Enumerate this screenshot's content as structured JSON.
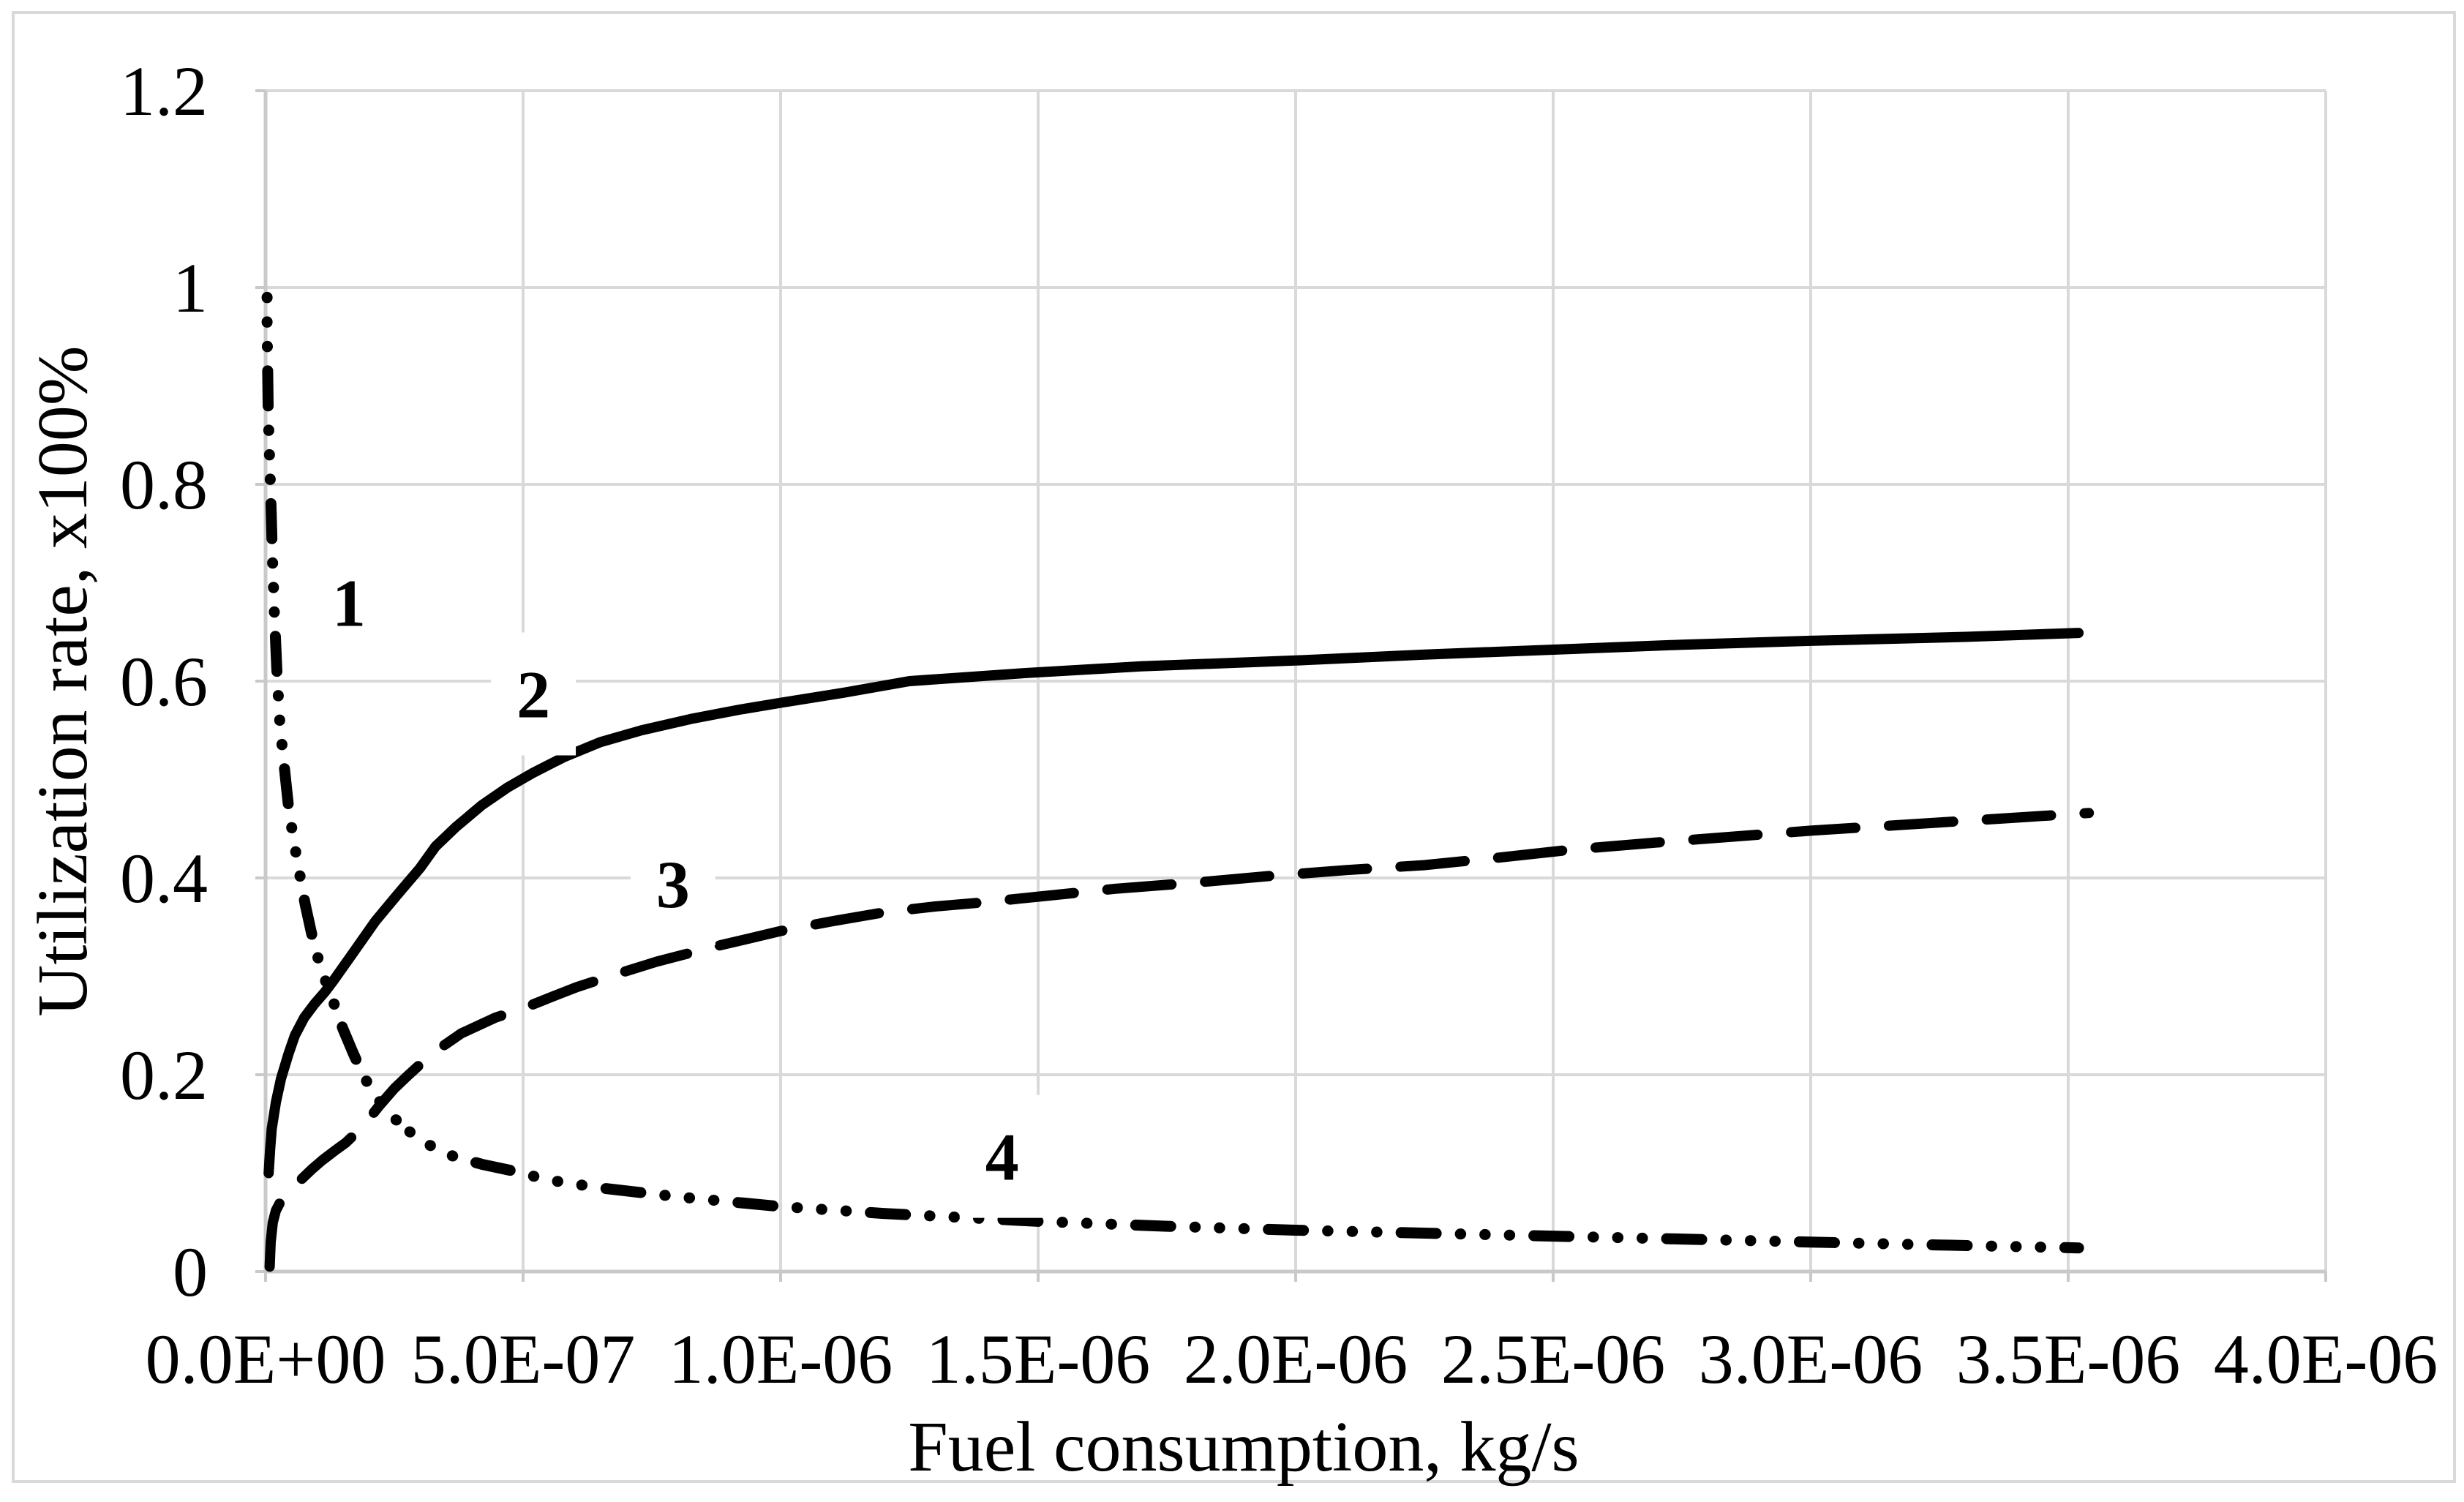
{
  "figure": {
    "background_color": "#FFFFFF",
    "border_color": "#D9D9D9",
    "gridline_color": "#D9D9D9",
    "axis_line_color": "#C9C9C9",
    "curve_color": "#000000"
  },
  "chart_data": {
    "type": "line",
    "title": "",
    "xlabel": "Fuel consumption, kg/s",
    "ylabel": "Utilization rate, x100%",
    "xlim": [
      0,
      4e-06
    ],
    "ylim": [
      0,
      1.2
    ],
    "grid": true,
    "legend_position": "none",
    "x_tick_values": [
      0,
      5e-07,
      1e-06,
      1.5e-06,
      2e-06,
      2.5e-06,
      3e-06,
      3.5e-06,
      4e-06
    ],
    "x_tick_labels": [
      "0.0E+00",
      "5.0E-07",
      "1.0E-06",
      "1.5E-06",
      "2.0E-06",
      "2.5E-06",
      "3.0E-06",
      "3.5E-06",
      "4.0E-06"
    ],
    "y_tick_values": [
      0,
      0.2,
      0.4,
      0.6,
      0.8,
      1.0,
      1.2
    ],
    "y_tick_labels": [
      "0",
      "0.2",
      "0.4",
      "0.6",
      "0.8",
      "1",
      "1.2"
    ],
    "series": [
      {
        "name": "1",
        "style": "dotted",
        "points": [
          [
            3e-09,
            0.99
          ],
          [
            3e-09,
            0.96
          ],
          [
            4e-09,
            0.92
          ],
          [
            5e-09,
            0.88
          ],
          [
            7e-09,
            0.84
          ],
          [
            1e-08,
            0.79
          ],
          [
            1.3e-08,
            0.73
          ],
          [
            1.7e-08,
            0.67
          ],
          [
            2.2e-08,
            0.61
          ],
          [
            2.8e-08,
            0.555
          ],
          [
            3.5e-08,
            0.52
          ],
          [
            4.5e-08,
            0.47
          ],
          [
            5.5e-08,
            0.437
          ],
          [
            6.4e-08,
            0.41
          ],
          [
            7.7e-08,
            0.373
          ],
          [
            9.5e-08,
            0.33
          ],
          [
            1.13e-07,
            0.3
          ],
          [
            1.31e-07,
            0.275
          ],
          [
            1.5e-07,
            0.247
          ],
          [
            1.7e-07,
            0.222
          ],
          [
            1.9e-07,
            0.199
          ],
          [
            2.13e-07,
            0.178
          ],
          [
            2.45e-07,
            0.158
          ],
          [
            2.8e-07,
            0.142
          ]
        ]
      },
      {
        "name": "2",
        "style": "solid",
        "points": [
          [
            6e-09,
            0.1
          ],
          [
            9e-09,
            0.125
          ],
          [
            1.2e-08,
            0.145
          ],
          [
            2e-08,
            0.172
          ],
          [
            3e-08,
            0.196
          ],
          [
            4.5e-08,
            0.222
          ],
          [
            5.7e-08,
            0.24
          ],
          [
            7.5e-08,
            0.258
          ],
          [
            9.5e-08,
            0.272
          ],
          [
            1.15e-07,
            0.284
          ],
          [
            1.31e-07,
            0.295
          ],
          [
            1.66e-07,
            0.321
          ],
          [
            2.13e-07,
            0.356
          ],
          [
            2.56e-07,
            0.383
          ],
          [
            3e-07,
            0.41
          ],
          [
            3.3e-07,
            0.432
          ],
          [
            3.7e-07,
            0.452
          ],
          [
            4.2e-07,
            0.474
          ],
          [
            4.7e-07,
            0.492
          ],
          [
            5.2e-07,
            0.507
          ],
          [
            5.8e-07,
            0.523
          ],
          [
            6.5e-07,
            0.538
          ],
          [
            7.3e-07,
            0.55
          ],
          [
            8.3e-07,
            0.562
          ],
          [
            9.2e-07,
            0.571
          ],
          [
            1e-06,
            0.578
          ],
          [
            1.12e-06,
            0.588
          ],
          [
            1.25e-06,
            0.6
          ],
          [
            1.47e-06,
            0.608
          ],
          [
            1.7e-06,
            0.615
          ],
          [
            2e-06,
            0.621
          ],
          [
            2.25e-06,
            0.627
          ],
          [
            2.5e-06,
            0.632
          ],
          [
            2.75e-06,
            0.637
          ],
          [
            3e-06,
            0.641
          ],
          [
            3.3e-06,
            0.645
          ],
          [
            3.52e-06,
            0.649
          ]
        ]
      },
      {
        "name": "3",
        "style": "dashed",
        "points": [
          [
            8e-09,
            0.005
          ],
          [
            1e-08,
            0.03
          ],
          [
            1.4e-08,
            0.05
          ],
          [
            2e-08,
            0.062
          ],
          [
            3e-08,
            0.072
          ],
          [
            4.5e-08,
            0.08
          ],
          [
            5.3e-08,
            0.084
          ],
          [
            7e-08,
            0.094
          ],
          [
            9e-08,
            0.104
          ],
          [
            1.1e-07,
            0.113
          ],
          [
            1.35e-07,
            0.123
          ],
          [
            1.56e-07,
            0.131
          ],
          [
            1.9e-07,
            0.148
          ],
          [
            2.2e-07,
            0.168
          ],
          [
            2.5e-07,
            0.186
          ],
          [
            2.76e-07,
            0.199
          ],
          [
            3.22e-07,
            0.221
          ],
          [
            3.8e-07,
            0.242
          ],
          [
            4.46e-07,
            0.258
          ],
          [
            5.03e-07,
            0.268
          ],
          [
            5.6e-07,
            0.28
          ],
          [
            6.04e-07,
            0.289
          ],
          [
            6.8e-07,
            0.302
          ],
          [
            7.6e-07,
            0.315
          ],
          [
            8.7e-07,
            0.33
          ],
          [
            1e-06,
            0.346
          ],
          [
            1.1e-06,
            0.356
          ],
          [
            1.2e-06,
            0.365
          ],
          [
            1.3e-06,
            0.371
          ],
          [
            1.39e-06,
            0.375
          ],
          [
            1.5e-06,
            0.381
          ],
          [
            1.65e-06,
            0.389
          ],
          [
            1.8e-06,
            0.395
          ],
          [
            1.95e-06,
            0.402
          ],
          [
            2.1e-06,
            0.408
          ],
          [
            2.25e-06,
            0.413
          ],
          [
            2.4e-06,
            0.421
          ],
          [
            2.54e-06,
            0.429
          ],
          [
            2.7e-06,
            0.436
          ],
          [
            2.85e-06,
            0.442
          ],
          [
            3e-06,
            0.448
          ],
          [
            3.15e-06,
            0.453
          ],
          [
            3.3e-06,
            0.458
          ],
          [
            3.42e-06,
            0.462
          ],
          [
            3.54e-06,
            0.466
          ]
        ]
      },
      {
        "name": "4",
        "style": "dotted",
        "points": [
          [
            2.8e-07,
            0.142
          ],
          [
            3.2e-07,
            0.128
          ],
          [
            3.65e-07,
            0.117
          ],
          [
            4.2e-07,
            0.109
          ],
          [
            4.74e-07,
            0.103
          ],
          [
            5.5e-07,
            0.093
          ],
          [
            6.5e-07,
            0.085
          ],
          [
            8e-07,
            0.076
          ],
          [
            1e-06,
            0.066
          ],
          [
            1.2e-06,
            0.059
          ],
          [
            1.5e-06,
            0.051
          ],
          [
            1.75e-06,
            0.046
          ],
          [
            2e-06,
            0.042
          ],
          [
            2.25e-06,
            0.039
          ],
          [
            2.5e-06,
            0.036
          ],
          [
            2.75e-06,
            0.033
          ],
          [
            3e-06,
            0.03
          ],
          [
            3.25e-06,
            0.027
          ],
          [
            3.52e-06,
            0.024
          ]
        ]
      }
    ],
    "curve_labels": [
      {
        "text": "1",
        "x": 1.62e-07,
        "y": 0.68
      },
      {
        "text": "2",
        "x": 5.2e-07,
        "y": 0.587
      },
      {
        "text": "3",
        "x": 7.91e-07,
        "y": 0.394
      },
      {
        "text": "4",
        "x": 1.43e-06,
        "y": 0.117
      }
    ]
  }
}
